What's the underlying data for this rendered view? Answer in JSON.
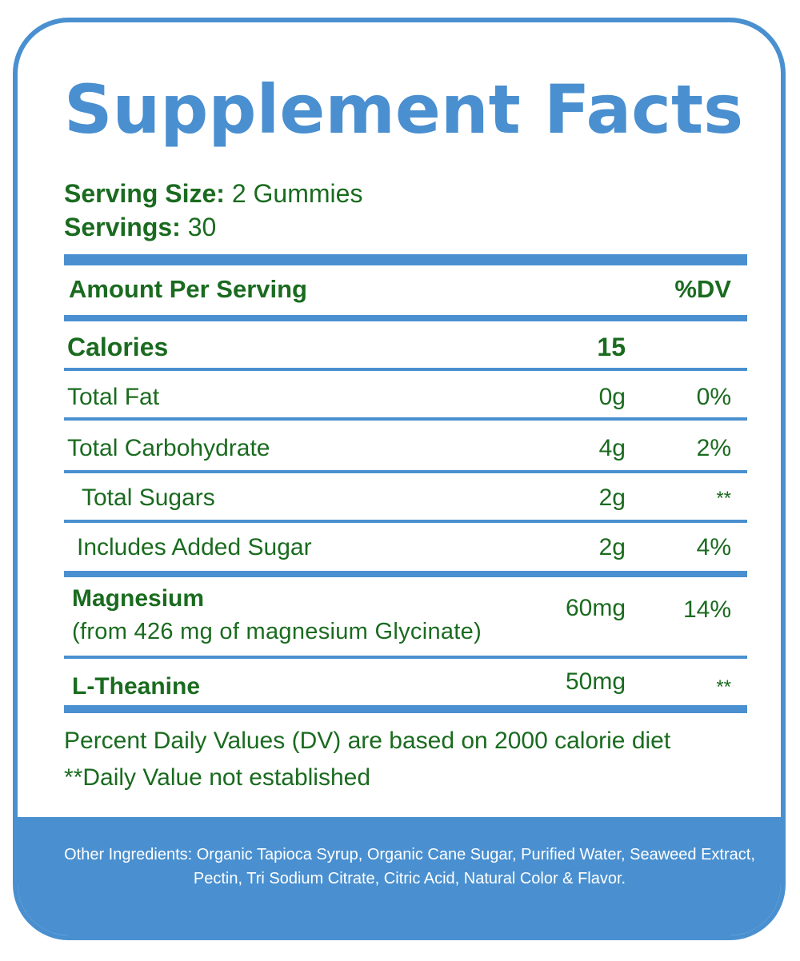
{
  "title": "Supplement Facts",
  "serving": {
    "size_label": "Serving Size:",
    "size_value": "2 Gummies",
    "servings_label": "Servings:",
    "servings_value": "30"
  },
  "header": {
    "amount_label": "Amount Per Serving",
    "dv_label": "%DV"
  },
  "rows": [
    {
      "name": "Calories",
      "amount": "15",
      "dv": ""
    },
    {
      "name": "Total Fat",
      "amount": "0g",
      "dv": "0%"
    },
    {
      "name": "Total Carbohydrate",
      "amount": "4g",
      "dv": "2%"
    },
    {
      "name": "Total Sugars",
      "amount": "2g",
      "dv": "**"
    },
    {
      "name": "Includes Added Sugar",
      "amount": "2g",
      "dv": "4%"
    },
    {
      "name": "Magnesium",
      "sub": "(from 426 mg of magnesium Glycinate)",
      "amount": "60mg",
      "dv": "14%"
    },
    {
      "name": "L-Theanine",
      "amount": "50mg",
      "dv": "**"
    }
  ],
  "footnotes": {
    "line1": "Percent Daily Values (DV) are based on 2000 calorie diet",
    "line2": "**Daily Value not established"
  },
  "ingredients": "Other Ingredients: Organic Tapioca Syrup, Organic Cane Sugar, Purified Water, Seaweed Extract, Pectin, Tri Sodium Citrate, Citric Acid, Natural Color & Flavor.",
  "colors": {
    "brand_blue": "#4a90d0",
    "text_green": "#1a6b1f",
    "band_text": "#ffffff"
  }
}
